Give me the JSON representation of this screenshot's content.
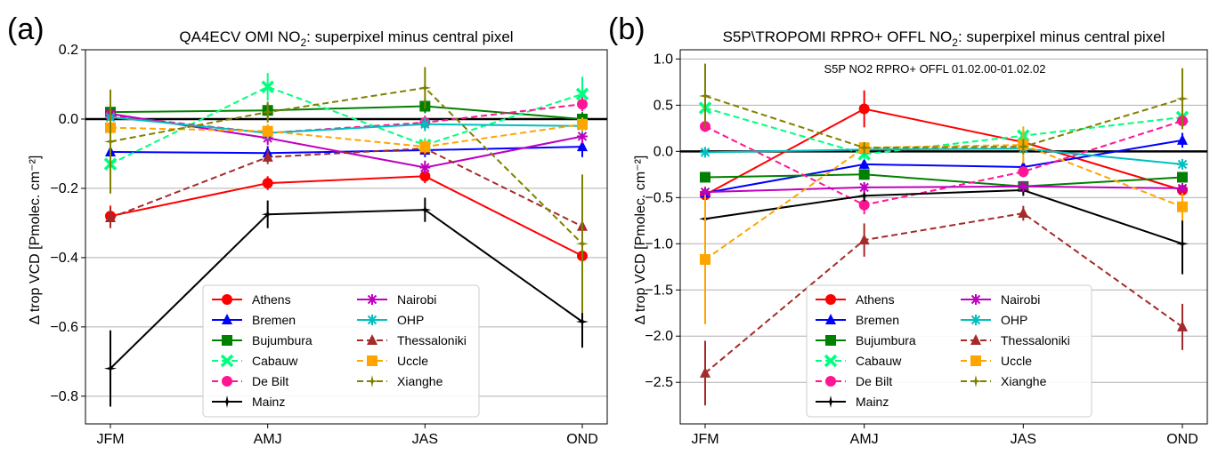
{
  "chart_data": [
    {
      "type": "line",
      "panel_label": "(a)",
      "title_prefix": "QA4ECV OMI NO",
      "title_sub": "2",
      "title_suffix": ": superpixel minus central pixel",
      "ylabel": "Δ trop VCD [Pmolec. cm⁻²]",
      "annotation": "",
      "categories": [
        "JFM",
        "AMJ",
        "JAS",
        "OND"
      ],
      "ylim": [
        -0.88,
        0.2
      ],
      "yticks": [
        0.2,
        0.0,
        -0.2,
        -0.4,
        -0.6,
        -0.8
      ],
      "ytick_labels": [
        "0.2",
        "0.0",
        "−0.2",
        "−0.4",
        "−0.6",
        "−0.8"
      ],
      "grid": true,
      "legend_location": "lower-center",
      "series": [
        {
          "name": "Athens",
          "color": "#ff0000",
          "marker": "circle",
          "dashed": false,
          "values": [
            -0.28,
            -0.185,
            -0.165,
            -0.395
          ],
          "errors": [
            0.03,
            0.02,
            0.02,
            0.02
          ]
        },
        {
          "name": "Bremen",
          "color": "#0000ff",
          "marker": "triangle-up",
          "dashed": false,
          "values": [
            -0.095,
            -0.098,
            -0.09,
            -0.08
          ],
          "errors": [
            0.02,
            0.02,
            0.02,
            0.03
          ]
        },
        {
          "name": "Bujumbura",
          "color": "#008000",
          "marker": "square",
          "dashed": false,
          "values": [
            0.02,
            0.025,
            0.037,
            0.0
          ],
          "errors": [
            0.02,
            0.02,
            0.02,
            0.02
          ]
        },
        {
          "name": "Cabauw",
          "color": "#00ff7f",
          "marker": "x-filled",
          "dashed": true,
          "values": [
            -0.13,
            0.093,
            -0.075,
            0.072
          ],
          "errors": [
            0.02,
            0.04,
            0.02,
            0.05
          ]
        },
        {
          "name": "De Bilt",
          "color": "#ff1493",
          "marker": "circle",
          "dashed": true,
          "values": [
            0.01,
            -0.04,
            -0.01,
            0.043
          ],
          "errors": [
            0.02,
            0.02,
            0.02,
            0.02
          ]
        },
        {
          "name": "Mainz",
          "color": "#000000",
          "marker": "star4",
          "dashed": false,
          "values": [
            -0.72,
            -0.275,
            -0.262,
            -0.585
          ],
          "errors": [
            0.11,
            0.04,
            0.035,
            0.075
          ]
        },
        {
          "name": "Nairobi",
          "color": "#bf00bf",
          "marker": "star",
          "dashed": false,
          "values": [
            0.015,
            -0.055,
            -0.14,
            -0.05
          ],
          "errors": [
            0.02,
            0.02,
            0.02,
            0.02
          ]
        },
        {
          "name": "OHP",
          "color": "#00bfbf",
          "marker": "star",
          "dashed": false,
          "values": [
            0.005,
            -0.04,
            -0.015,
            -0.02
          ],
          "errors": [
            0.02,
            0.02,
            0.02,
            0.02
          ]
        },
        {
          "name": "Thessaloniki",
          "color": "#a52a2a",
          "marker": "triangle-up",
          "dashed": true,
          "values": [
            -0.285,
            -0.11,
            -0.085,
            -0.31
          ],
          "errors": [
            0.03,
            0.02,
            0.02,
            0.03
          ]
        },
        {
          "name": "Uccle",
          "color": "#ffa500",
          "marker": "square",
          "dashed": true,
          "values": [
            -0.025,
            -0.035,
            -0.08,
            -0.015
          ],
          "errors": [
            0.02,
            0.02,
            0.02,
            0.02
          ]
        },
        {
          "name": "Xianghe",
          "color": "#808000",
          "marker": "star4",
          "dashed": true,
          "values": [
            -0.065,
            0.02,
            0.09,
            -0.36
          ],
          "errors": [
            0.15,
            0.03,
            0.06,
            0.2
          ]
        }
      ]
    },
    {
      "type": "line",
      "panel_label": "(b)",
      "title_prefix": "S5P\\TROPOMI RPRO+ OFFL NO",
      "title_sub": "2",
      "title_suffix": ": superpixel minus central pixel",
      "ylabel": "Δ trop VCD [Pmolec. cm⁻²]",
      "annotation": "S5P  NO2 RPRO+ OFFL 01.02.00-01.02.02",
      "categories": [
        "JFM",
        "AMJ",
        "JAS",
        "OND"
      ],
      "ylim": [
        -2.95,
        1.1
      ],
      "yticks": [
        1.0,
        0.5,
        0.0,
        -0.5,
        -1.0,
        -1.5,
        -2.0,
        -2.5
      ],
      "ytick_labels": [
        "1.0",
        "0.5",
        "0.0",
        "−0.5",
        "−1.0",
        "−1.5",
        "−2.0",
        "−2.5"
      ],
      "grid": true,
      "legend_location": "lower-center",
      "series": [
        {
          "name": "Athens",
          "color": "#ff0000",
          "marker": "circle",
          "dashed": false,
          "values": [
            -0.47,
            0.46,
            0.1,
            -0.42
          ],
          "errors": [
            0.05,
            0.2,
            0.06,
            0.05
          ]
        },
        {
          "name": "Bremen",
          "color": "#0000ff",
          "marker": "triangle-up",
          "dashed": false,
          "values": [
            -0.45,
            -0.14,
            -0.17,
            0.12
          ],
          "errors": [
            0.06,
            0.05,
            0.05,
            0.08
          ]
        },
        {
          "name": "Bujumbura",
          "color": "#008000",
          "marker": "square",
          "dashed": false,
          "values": [
            -0.28,
            -0.25,
            -0.38,
            -0.28
          ],
          "errors": [
            0.05,
            0.05,
            0.05,
            0.05
          ]
        },
        {
          "name": "Cabauw",
          "color": "#00ff7f",
          "marker": "x-filled",
          "dashed": true,
          "values": [
            0.47,
            -0.03,
            0.17,
            0.37
          ],
          "errors": [
            0.06,
            0.06,
            0.06,
            0.06
          ]
        },
        {
          "name": "De Bilt",
          "color": "#ff1493",
          "marker": "circle",
          "dashed": true,
          "values": [
            0.27,
            -0.58,
            -0.22,
            0.33
          ],
          "errors": [
            0.06,
            0.1,
            0.06,
            0.06
          ]
        },
        {
          "name": "Mainz",
          "color": "#000000",
          "marker": "star4",
          "dashed": false,
          "values": [
            -0.73,
            -0.48,
            -0.42,
            -1.0
          ],
          "errors": [
            0.06,
            0.06,
            0.06,
            0.33
          ]
        },
        {
          "name": "Nairobi",
          "color": "#bf00bf",
          "marker": "star",
          "dashed": false,
          "values": [
            -0.44,
            -0.39,
            -0.38,
            -0.4
          ],
          "errors": [
            0.05,
            0.05,
            0.05,
            0.05
          ]
        },
        {
          "name": "OHP",
          "color": "#00bfbf",
          "marker": "star",
          "dashed": false,
          "values": [
            -0.01,
            0.02,
            0.03,
            -0.14
          ],
          "errors": [
            0.05,
            0.05,
            0.05,
            0.05
          ]
        },
        {
          "name": "Thessaloniki",
          "color": "#a52a2a",
          "marker": "triangle-up",
          "dashed": true,
          "values": [
            -2.4,
            -0.96,
            -0.67,
            -1.9
          ],
          "errors": [
            0.35,
            0.18,
            0.08,
            0.25
          ]
        },
        {
          "name": "Uccle",
          "color": "#ffa500",
          "marker": "square",
          "dashed": true,
          "values": [
            -1.17,
            0.04,
            0.07,
            -0.6
          ],
          "errors": [
            0.7,
            0.06,
            0.2,
            0.15
          ]
        },
        {
          "name": "Xianghe",
          "color": "#808000",
          "marker": "star4",
          "dashed": true,
          "values": [
            0.6,
            0.04,
            0.05,
            0.57
          ],
          "errors": [
            0.35,
            0.06,
            0.08,
            0.33
          ]
        }
      ]
    }
  ]
}
